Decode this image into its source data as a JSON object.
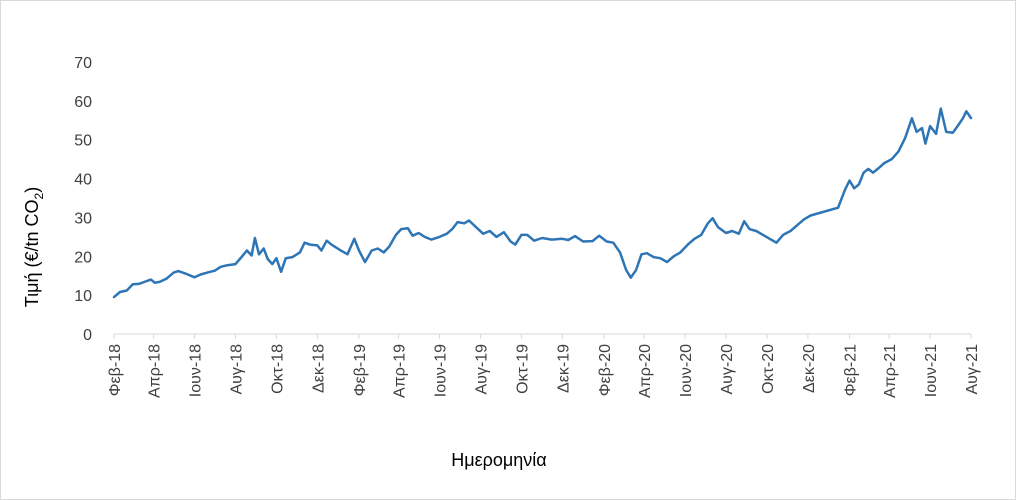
{
  "chart_data": {
    "type": "line",
    "xlabel": "Ημερομηνία",
    "ylabel": "Τιμή (€/tn CO",
    "ylabel_subscript": "2",
    "ylabel_close": ")",
    "ylim": [
      0,
      70
    ],
    "yticks": [
      0,
      10,
      20,
      30,
      40,
      50,
      60,
      70
    ],
    "x_range": [
      "2018-02-01",
      "2021-08-01"
    ],
    "grid": false,
    "legend": "none",
    "line_color": "#2E75B6",
    "xticks": [
      {
        "date": "2018-02-01",
        "label": "Φεβ-18"
      },
      {
        "date": "2018-04-01",
        "label": "Απρ-18"
      },
      {
        "date": "2018-06-01",
        "label": "Ιουν-18"
      },
      {
        "date": "2018-08-01",
        "label": "Αυγ-18"
      },
      {
        "date": "2018-10-01",
        "label": "Οκτ-18"
      },
      {
        "date": "2018-12-01",
        "label": "Δεκ-18"
      },
      {
        "date": "2019-02-01",
        "label": "Φεβ-19"
      },
      {
        "date": "2019-04-01",
        "label": "Απρ-19"
      },
      {
        "date": "2019-06-01",
        "label": "Ιουν-19"
      },
      {
        "date": "2019-08-01",
        "label": "Αυγ-19"
      },
      {
        "date": "2019-10-01",
        "label": "Οκτ-19"
      },
      {
        "date": "2019-12-01",
        "label": "Δεκ-19"
      },
      {
        "date": "2020-02-01",
        "label": "Φεβ-20"
      },
      {
        "date": "2020-04-01",
        "label": "Απρ-20"
      },
      {
        "date": "2020-06-01",
        "label": "Ιουν-20"
      },
      {
        "date": "2020-08-01",
        "label": "Αυγ-20"
      },
      {
        "date": "2020-10-01",
        "label": "Οκτ-20"
      },
      {
        "date": "2020-12-01",
        "label": "Δεκ-20"
      },
      {
        "date": "2021-02-01",
        "label": "Φεβ-21"
      },
      {
        "date": "2021-04-01",
        "label": "Απρ-21"
      },
      {
        "date": "2021-06-01",
        "label": "Ιουν-21"
      },
      {
        "date": "2021-08-01",
        "label": "Αυγ-21"
      }
    ],
    "series": [
      {
        "values": [
          [
            "2018-02-01",
            9.5
          ],
          [
            "2018-02-10",
            10.8
          ],
          [
            "2018-02-20",
            11.2
          ],
          [
            "2018-03-01",
            12.8
          ],
          [
            "2018-03-10",
            12.9
          ],
          [
            "2018-03-20",
            13.5
          ],
          [
            "2018-03-28",
            14.0
          ],
          [
            "2018-04-03",
            13.2
          ],
          [
            "2018-04-10",
            13.4
          ],
          [
            "2018-04-20",
            14.2
          ],
          [
            "2018-05-01",
            15.8
          ],
          [
            "2018-05-08",
            16.2
          ],
          [
            "2018-05-18",
            15.6
          ],
          [
            "2018-06-01",
            14.6
          ],
          [
            "2018-06-10",
            15.3
          ],
          [
            "2018-06-20",
            15.8
          ],
          [
            "2018-07-01",
            16.3
          ],
          [
            "2018-07-10",
            17.3
          ],
          [
            "2018-07-20",
            17.7
          ],
          [
            "2018-08-01",
            18.0
          ],
          [
            "2018-08-10",
            19.8
          ],
          [
            "2018-08-18",
            21.5
          ],
          [
            "2018-08-25",
            20.2
          ],
          [
            "2018-08-30",
            24.7
          ],
          [
            "2018-09-05",
            20.5
          ],
          [
            "2018-09-12",
            22.0
          ],
          [
            "2018-09-18",
            19.3
          ],
          [
            "2018-09-25",
            18.0
          ],
          [
            "2018-10-01",
            19.5
          ],
          [
            "2018-10-08",
            16.0
          ],
          [
            "2018-10-15",
            19.5
          ],
          [
            "2018-10-25",
            19.8
          ],
          [
            "2018-11-05",
            21.0
          ],
          [
            "2018-11-12",
            23.5
          ],
          [
            "2018-11-20",
            23.0
          ],
          [
            "2018-12-01",
            22.8
          ],
          [
            "2018-12-07",
            21.5
          ],
          [
            "2018-12-15",
            24.0
          ],
          [
            "2018-12-22",
            23.0
          ],
          [
            "2019-01-05",
            21.5
          ],
          [
            "2019-01-15",
            20.5
          ],
          [
            "2019-01-25",
            24.5
          ],
          [
            "2019-02-01",
            21.5
          ],
          [
            "2019-02-10",
            18.5
          ],
          [
            "2019-02-20",
            21.5
          ],
          [
            "2019-03-01",
            22.0
          ],
          [
            "2019-03-10",
            21.0
          ],
          [
            "2019-03-18",
            22.5
          ],
          [
            "2019-03-28",
            25.5
          ],
          [
            "2019-04-05",
            27.0
          ],
          [
            "2019-04-15",
            27.2
          ],
          [
            "2019-04-22",
            25.3
          ],
          [
            "2019-05-01",
            26.0
          ],
          [
            "2019-05-10",
            25.0
          ],
          [
            "2019-05-20",
            24.3
          ],
          [
            "2019-06-01",
            25.0
          ],
          [
            "2019-06-12",
            25.8
          ],
          [
            "2019-06-20",
            27.0
          ],
          [
            "2019-06-28",
            28.8
          ],
          [
            "2019-07-08",
            28.5
          ],
          [
            "2019-07-15",
            29.2
          ],
          [
            "2019-07-25",
            27.6
          ],
          [
            "2019-08-05",
            25.8
          ],
          [
            "2019-08-15",
            26.5
          ],
          [
            "2019-08-25",
            25.0
          ],
          [
            "2019-09-05",
            26.2
          ],
          [
            "2019-09-15",
            23.8
          ],
          [
            "2019-09-22",
            23.0
          ],
          [
            "2019-10-01",
            25.5
          ],
          [
            "2019-10-10",
            25.5
          ],
          [
            "2019-10-20",
            24.0
          ],
          [
            "2019-11-01",
            24.7
          ],
          [
            "2019-11-15",
            24.3
          ],
          [
            "2019-12-01",
            24.5
          ],
          [
            "2019-12-10",
            24.2
          ],
          [
            "2019-12-20",
            25.2
          ],
          [
            "2020-01-01",
            23.8
          ],
          [
            "2020-01-15",
            23.9
          ],
          [
            "2020-01-25",
            25.3
          ],
          [
            "2020-02-05",
            23.8
          ],
          [
            "2020-02-15",
            23.5
          ],
          [
            "2020-02-25",
            21.0
          ],
          [
            "2020-03-05",
            16.5
          ],
          [
            "2020-03-12",
            14.5
          ],
          [
            "2020-03-20",
            16.5
          ],
          [
            "2020-03-28",
            20.5
          ],
          [
            "2020-04-05",
            20.8
          ],
          [
            "2020-04-15",
            19.8
          ],
          [
            "2020-04-25",
            19.5
          ],
          [
            "2020-05-05",
            18.5
          ],
          [
            "2020-05-15",
            20.0
          ],
          [
            "2020-05-25",
            21.0
          ],
          [
            "2020-06-05",
            23.0
          ],
          [
            "2020-06-15",
            24.5
          ],
          [
            "2020-06-25",
            25.5
          ],
          [
            "2020-07-05",
            28.5
          ],
          [
            "2020-07-12",
            29.8
          ],
          [
            "2020-07-20",
            27.5
          ],
          [
            "2020-08-01",
            26.0
          ],
          [
            "2020-08-10",
            26.5
          ],
          [
            "2020-08-20",
            25.8
          ],
          [
            "2020-08-28",
            29.0
          ],
          [
            "2020-09-05",
            27.0
          ],
          [
            "2020-09-15",
            26.5
          ],
          [
            "2020-09-25",
            25.5
          ],
          [
            "2020-10-05",
            24.5
          ],
          [
            "2020-10-15",
            23.5
          ],
          [
            "2020-10-25",
            25.5
          ],
          [
            "2020-11-05",
            26.5
          ],
          [
            "2020-11-15",
            28.0
          ],
          [
            "2020-11-25",
            29.5
          ],
          [
            "2020-12-05",
            30.5
          ],
          [
            "2021-01-15",
            32.5
          ],
          [
            "2021-01-25",
            37.0
          ],
          [
            "2021-02-01",
            39.5
          ],
          [
            "2021-02-08",
            37.5
          ],
          [
            "2021-02-15",
            38.5
          ],
          [
            "2021-02-22",
            41.5
          ],
          [
            "2021-03-01",
            42.5
          ],
          [
            "2021-03-08",
            41.5
          ],
          [
            "2021-03-15",
            42.5
          ],
          [
            "2021-03-25",
            44.0
          ],
          [
            "2021-04-05",
            45.0
          ],
          [
            "2021-04-15",
            47.0
          ],
          [
            "2021-04-25",
            50.5
          ],
          [
            "2021-05-05",
            55.5
          ],
          [
            "2021-05-12",
            52.0
          ],
          [
            "2021-05-20",
            53.0
          ],
          [
            "2021-05-25",
            49.0
          ],
          [
            "2021-06-01",
            53.5
          ],
          [
            "2021-06-10",
            51.5
          ],
          [
            "2021-06-17",
            58.0
          ],
          [
            "2021-06-25",
            52.0
          ],
          [
            "2021-07-05",
            51.8
          ],
          [
            "2021-07-12",
            53.5
          ],
          [
            "2021-07-20",
            55.5
          ],
          [
            "2021-07-25",
            57.3
          ],
          [
            "2021-08-01",
            55.6
          ]
        ]
      }
    ]
  }
}
